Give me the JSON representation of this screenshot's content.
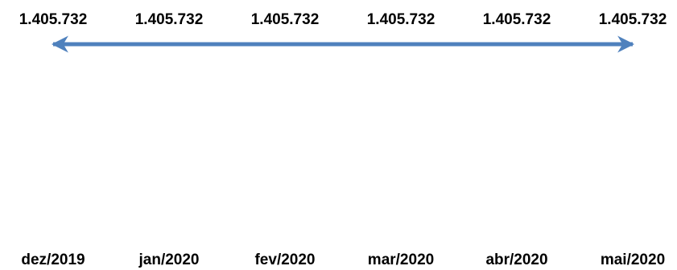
{
  "chart_data": {
    "type": "line",
    "categories": [
      "dez/2019",
      "jan/2020",
      "fev/2020",
      "mar/2020",
      "abr/2020",
      "mai/2020"
    ],
    "series": [
      {
        "values": [
          1405732,
          1405732,
          1405732,
          1405732,
          1405732,
          1405732
        ],
        "labels": [
          "1.405.732",
          "1.405.732",
          "1.405.732",
          "1.405.732",
          "1.405.732",
          "1.405.732"
        ],
        "color": "#4f81bd"
      }
    ],
    "title": "",
    "xlabel": "",
    "ylabel": "",
    "grid": false,
    "legend": "none"
  }
}
